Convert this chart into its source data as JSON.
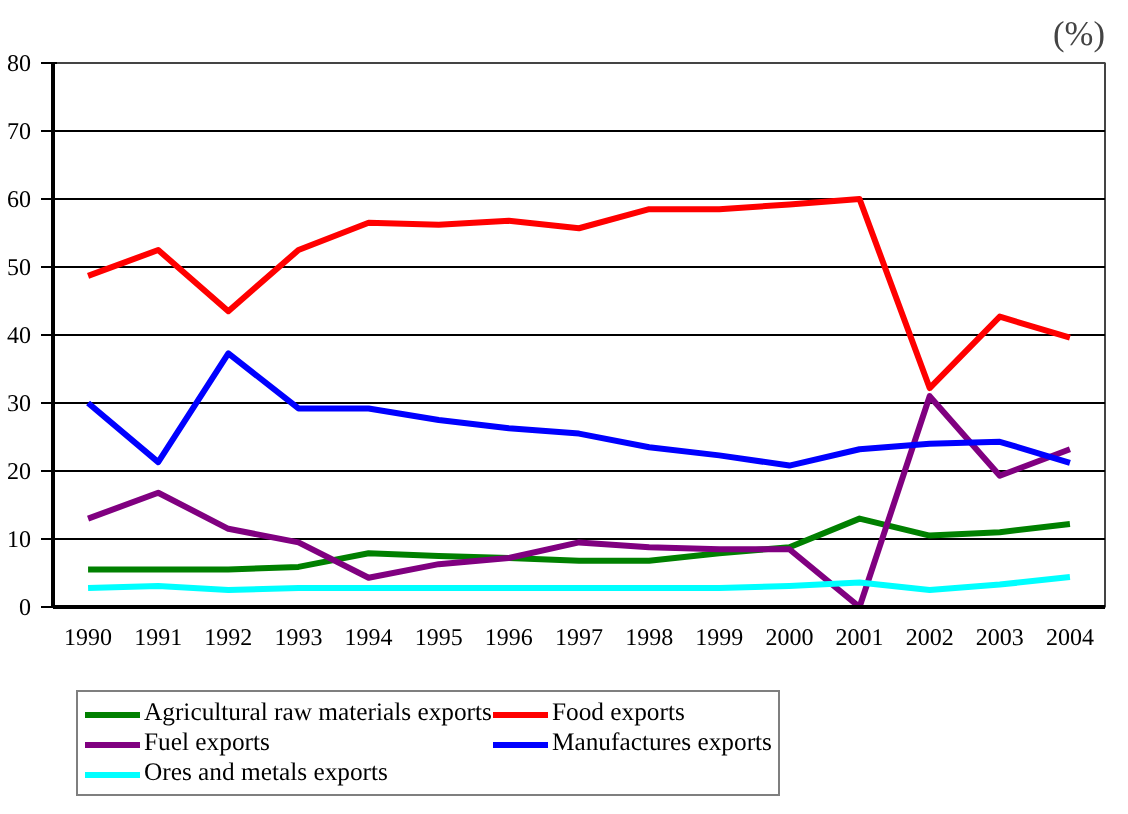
{
  "chart_data": {
    "type": "line",
    "ylabel": "(%)",
    "categories": [
      "1990",
      "1991",
      "1992",
      "1993",
      "1994",
      "1995",
      "1996",
      "1997",
      "1998",
      "1999",
      "2000",
      "2001",
      "2002",
      "2003",
      "2004"
    ],
    "series": [
      {
        "name": "Agricultural raw materials exports",
        "color": "#008000",
        "values": [
          5.5,
          5.5,
          5.5,
          5.9,
          7.9,
          7.5,
          7.2,
          6.8,
          6.8,
          7.9,
          8.8,
          13,
          10.5,
          11,
          12.2
        ]
      },
      {
        "name": "Food exports",
        "color": "#ff0000",
        "values": [
          48.7,
          52.5,
          43.5,
          52.5,
          56.5,
          56.2,
          56.8,
          55.7,
          58.5,
          58.5,
          59.2,
          60,
          32.2,
          42.7,
          39.6
        ]
      },
      {
        "name": "Fuel exports",
        "color": "#800080",
        "values": [
          13,
          16.8,
          11.5,
          9.5,
          4.3,
          6.3,
          7.2,
          9.5,
          8.8,
          8.5,
          8.5,
          0,
          31,
          19.3,
          23.2
        ]
      },
      {
        "name": "Manufactures exports",
        "color": "#0000ff",
        "values": [
          30,
          21.3,
          37.3,
          29.2,
          29.2,
          27.5,
          26.3,
          25.5,
          23.5,
          22.3,
          20.8,
          23.2,
          24,
          24.3,
          21.2
        ]
      },
      {
        "name": "Ores and metals exports",
        "color": "#00ffff",
        "values": [
          2.8,
          3.1,
          2.5,
          2.8,
          2.8,
          2.8,
          2.8,
          2.8,
          2.8,
          2.8,
          3.1,
          3.6,
          2.5,
          3.3,
          4.4
        ]
      }
    ],
    "ylim": [
      0,
      80
    ],
    "yticks": [
      0,
      10,
      20,
      30,
      40,
      50,
      60,
      70,
      80
    ],
    "grid": "y",
    "legend": "bottom",
    "line_style": "solid",
    "marker": "none"
  }
}
